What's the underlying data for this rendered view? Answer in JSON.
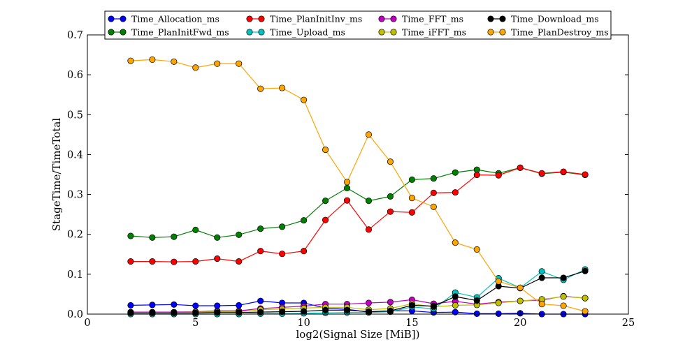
{
  "chart_data": {
    "type": "line",
    "title": "",
    "xlabel": "log2(Signal Size [MiB])",
    "ylabel": "StageTime/TimeTotal",
    "xlim": [
      0,
      25
    ],
    "ylim": [
      0,
      0.7
    ],
    "xticks": [
      0,
      5,
      10,
      15,
      20,
      25
    ],
    "yticks": [
      0.0,
      0.1,
      0.2,
      0.3,
      0.4,
      0.5,
      0.6,
      0.7
    ],
    "xtick_labels": [
      "0",
      "5",
      "10",
      "15",
      "20",
      "25"
    ],
    "ytick_labels": [
      "0.0",
      "0.1",
      "0.2",
      "0.3",
      "0.4",
      "0.5",
      "0.6",
      "0.7"
    ],
    "grid": false,
    "legend_position": "top",
    "x": [
      2,
      3,
      4,
      5,
      6,
      7,
      8,
      9,
      10,
      11,
      12,
      13,
      14,
      15,
      16,
      17,
      18,
      19,
      20,
      21,
      22,
      23
    ],
    "series": [
      {
        "name": "Time_Allocation_ms",
        "color": "#0000ff",
        "values": [
          0.022,
          0.023,
          0.024,
          0.021,
          0.021,
          0.022,
          0.033,
          0.028,
          0.028,
          0.015,
          0.012,
          0.005,
          0.008,
          0.008,
          0.004,
          0.005,
          0.001,
          0.001,
          0.002,
          0.0,
          0.0,
          0.0
        ]
      },
      {
        "name": "Time_PlanInitFwd_ms",
        "color": "#008000",
        "values": [
          0.196,
          0.192,
          0.194,
          0.211,
          0.192,
          0.199,
          0.214,
          0.219,
          0.235,
          0.284,
          0.316,
          0.284,
          0.295,
          0.337,
          0.34,
          0.355,
          0.362,
          0.353,
          0.367,
          0.352,
          0.356,
          0.349
        ]
      },
      {
        "name": "Time_PlanInitInv_ms",
        "color": "#ff0000",
        "values": [
          0.132,
          0.132,
          0.131,
          0.132,
          0.139,
          0.132,
          0.158,
          0.151,
          0.158,
          0.236,
          0.285,
          0.212,
          0.257,
          0.255,
          0.304,
          0.305,
          0.349,
          0.348,
          0.367,
          0.353,
          0.357,
          0.35
        ]
      },
      {
        "name": "Time_Upload_ms",
        "color": "#00bfbf",
        "values": [
          0.0,
          0.0,
          0.0,
          0.0,
          0.0,
          0.0,
          0.001,
          0.001,
          0.002,
          0.003,
          0.004,
          0.004,
          0.006,
          0.018,
          0.013,
          0.054,
          0.042,
          0.09,
          0.066,
          0.107,
          0.086,
          0.112
        ]
      },
      {
        "name": "Time_FFT_ms",
        "color": "#bf00bf",
        "values": [
          0.005,
          0.005,
          0.005,
          0.006,
          0.008,
          0.008,
          0.014,
          0.017,
          0.02,
          0.025,
          0.025,
          0.028,
          0.03,
          0.036,
          0.026,
          0.032,
          0.025,
          0.03,
          0.033,
          0.035,
          0.045,
          0.04
        ]
      },
      {
        "name": "Time_iFFT_ms",
        "color": "#bfbf00",
        "values": [
          0.004,
          0.004,
          0.004,
          0.005,
          0.006,
          0.006,
          0.011,
          0.013,
          0.015,
          0.017,
          0.017,
          0.011,
          0.014,
          0.026,
          0.018,
          0.022,
          0.023,
          0.028,
          0.033,
          0.037,
          0.044,
          0.04
        ]
      },
      {
        "name": "Time_Download_ms",
        "color": "#000000",
        "values": [
          0.003,
          0.003,
          0.003,
          0.003,
          0.004,
          0.004,
          0.005,
          0.006,
          0.007,
          0.01,
          0.01,
          0.006,
          0.008,
          0.022,
          0.02,
          0.044,
          0.034,
          0.07,
          0.065,
          0.091,
          0.091,
          0.108
        ]
      },
      {
        "name": "Time_PlanDestroy_ms",
        "color": "#ffa500",
        "values": [
          0.635,
          0.638,
          0.633,
          0.618,
          0.628,
          0.628,
          0.565,
          0.567,
          0.537,
          0.412,
          0.331,
          0.45,
          0.382,
          0.291,
          0.269,
          0.179,
          0.162,
          0.082,
          0.066,
          0.025,
          0.021,
          0.007
        ]
      }
    ]
  }
}
